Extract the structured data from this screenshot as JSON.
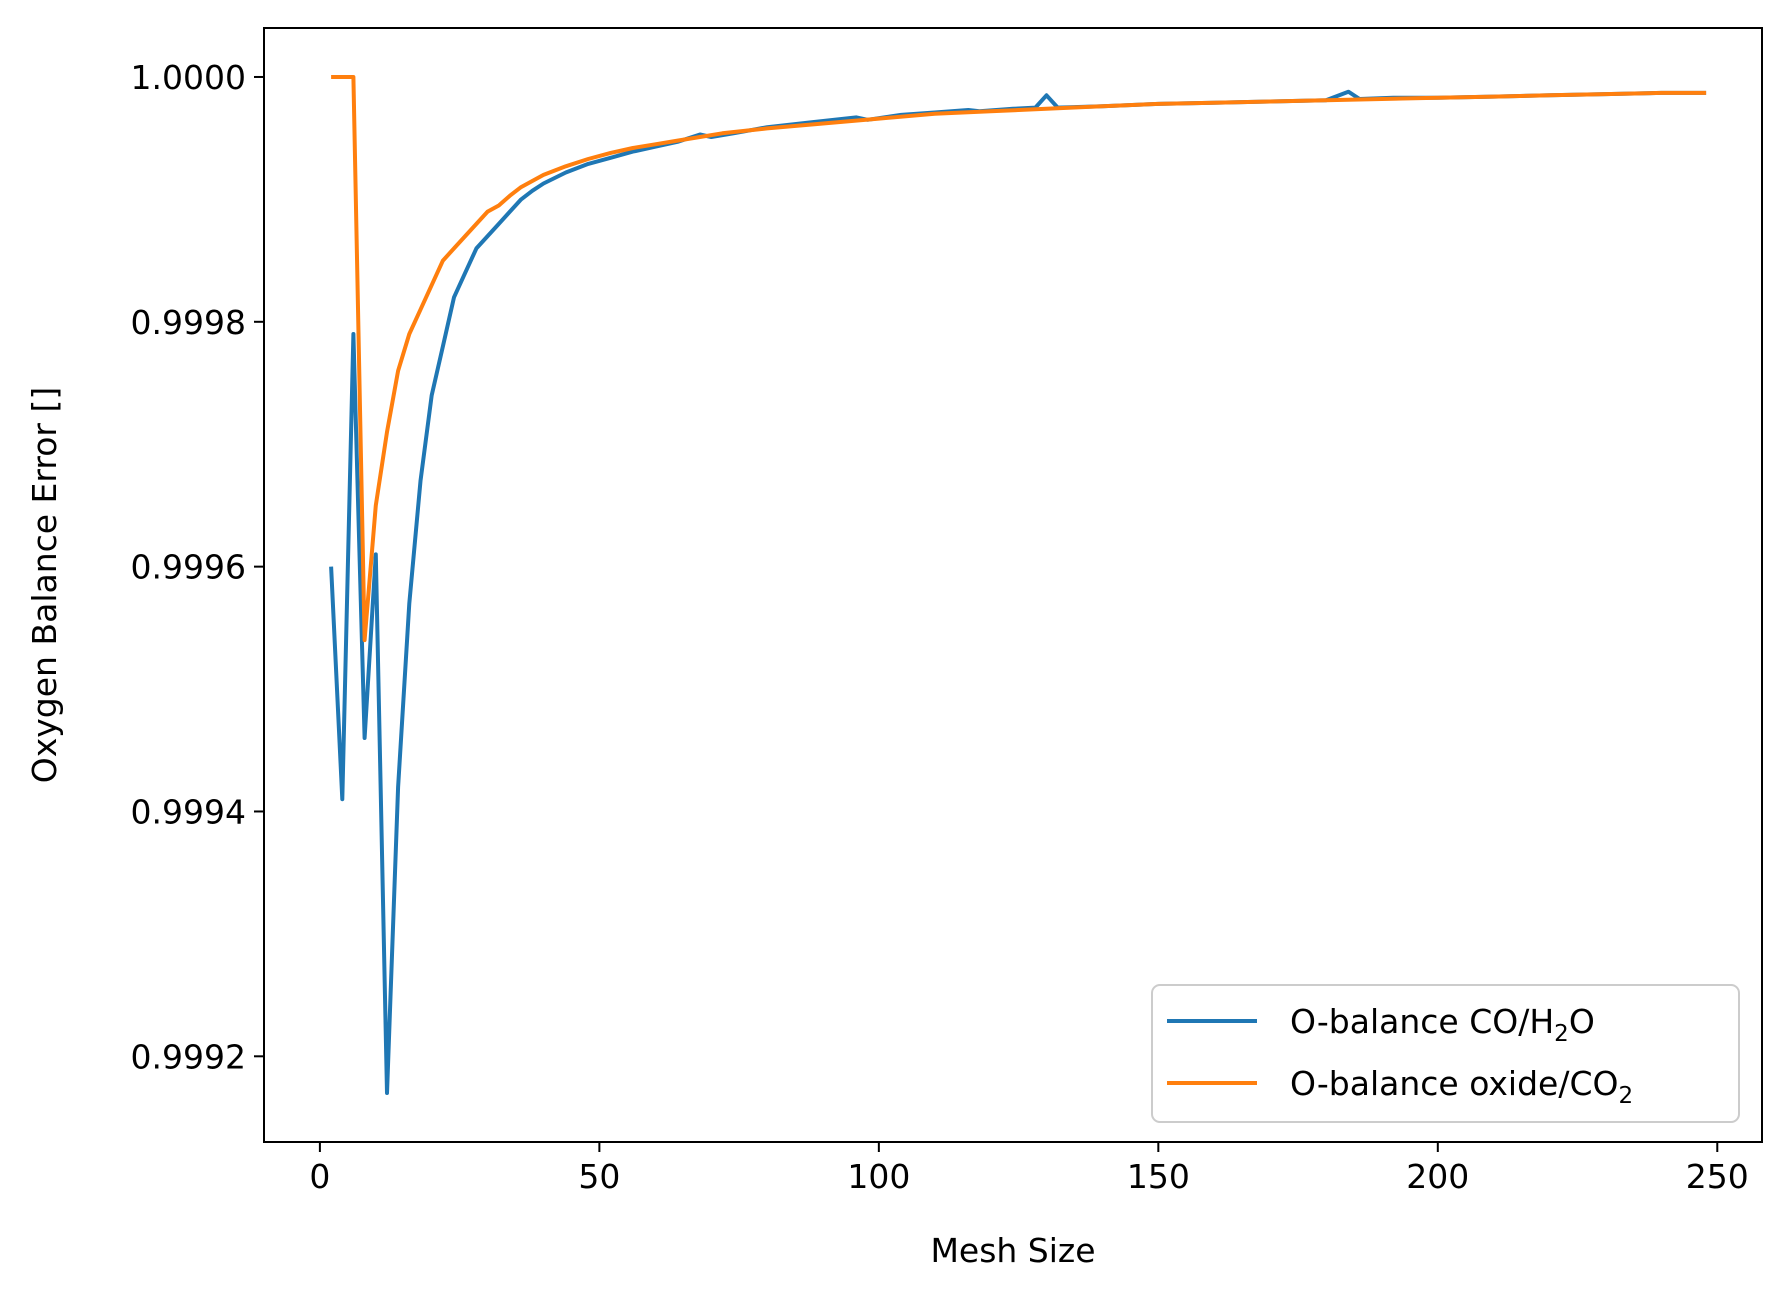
{
  "chart_data": {
    "type": "line",
    "title": "",
    "xlabel": "Mesh Size",
    "ylabel": "Oxygen Balance Error []",
    "xlim": [
      -10,
      258
    ],
    "ylim": [
      0.99913,
      1.00004
    ],
    "xticks": [
      0,
      50,
      100,
      150,
      200,
      250
    ],
    "yticks": [
      0.9992,
      0.9994,
      0.9996,
      0.9998,
      1.0
    ],
    "ytick_labels": [
      "0.9992",
      "0.9994",
      "0.9996",
      "0.9998",
      "1.0000"
    ],
    "xtick_labels": [
      "0",
      "50",
      "100",
      "150",
      "200",
      "250"
    ],
    "grid": false,
    "legend": "lower-right",
    "series": [
      {
        "name": "O-balance CO/H",
        "name_sub": "2",
        "name_tail": "O",
        "color": "#1f77b4",
        "x": [
          2,
          4,
          6,
          8,
          10,
          12,
          14,
          16,
          18,
          20,
          22,
          24,
          26,
          28,
          30,
          32,
          34,
          36,
          38,
          40,
          44,
          48,
          52,
          56,
          60,
          64,
          68,
          70,
          74,
          80,
          88,
          96,
          98,
          104,
          110,
          116,
          118,
          124,
          128,
          130,
          132,
          140,
          150,
          160,
          170,
          180,
          184,
          186,
          192,
          200,
          210,
          220,
          230,
          240,
          248
        ],
        "y": [
          0.9996,
          0.99941,
          0.99979,
          0.99946,
          0.99961,
          0.99917,
          0.99942,
          0.99957,
          0.99967,
          0.99974,
          0.99978,
          0.99982,
          0.99984,
          0.99986,
          0.99987,
          0.99988,
          0.99989,
          0.9999,
          0.999907,
          0.999913,
          0.999922,
          0.999929,
          0.999934,
          0.999939,
          0.999943,
          0.999947,
          0.999953,
          0.999951,
          0.999954,
          0.999959,
          0.999963,
          0.999967,
          0.999965,
          0.999969,
          0.999971,
          0.999973,
          0.999972,
          0.999974,
          0.999975,
          0.999985,
          0.999975,
          0.999976,
          0.999978,
          0.999979,
          0.99998,
          0.999981,
          0.999988,
          0.999982,
          0.999983,
          0.999983,
          0.999984,
          0.999985,
          0.999986,
          0.999987,
          0.999987
        ]
      },
      {
        "name": "O-balance oxide/CO",
        "name_sub": "2",
        "name_tail": "",
        "color": "#ff7f0e",
        "x": [
          2,
          4,
          6,
          8,
          10,
          12,
          14,
          16,
          18,
          20,
          22,
          24,
          26,
          28,
          30,
          32,
          34,
          36,
          38,
          40,
          44,
          48,
          52,
          56,
          60,
          64,
          68,
          72,
          80,
          90,
          100,
          110,
          120,
          130,
          140,
          150,
          160,
          170,
          180,
          190,
          200,
          210,
          220,
          230,
          240,
          248
        ],
        "y": [
          1.0,
          1.0,
          1.0,
          0.99954,
          0.99965,
          0.99971,
          0.99976,
          0.99979,
          0.99981,
          0.99983,
          0.99985,
          0.99986,
          0.99987,
          0.99988,
          0.99989,
          0.999895,
          0.999903,
          0.99991,
          0.999915,
          0.99992,
          0.999927,
          0.999933,
          0.999938,
          0.999942,
          0.999945,
          0.999948,
          0.999951,
          0.999954,
          0.999958,
          0.999962,
          0.999966,
          0.99997,
          0.999972,
          0.999974,
          0.999976,
          0.999978,
          0.999979,
          0.99998,
          0.999981,
          0.999982,
          0.999983,
          0.999984,
          0.999985,
          0.999986,
          0.999987,
          0.999987
        ]
      }
    ]
  }
}
